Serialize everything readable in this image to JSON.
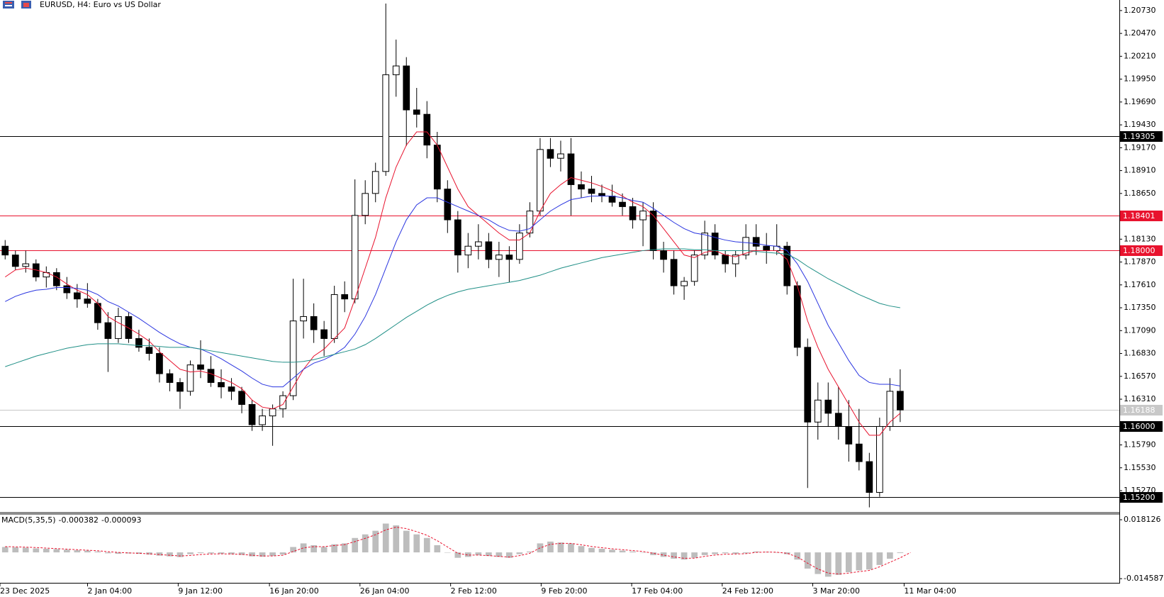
{
  "chart_data": [
    {
      "type": "candlestick",
      "title": "EURUSD, H4:  Euro vs US Dollar",
      "ylim": [
        1.1502,
        1.2085
      ],
      "xlim": [
        0,
        108.8
      ],
      "yticks": [
        {
          "value": 1.2073,
          "label": "1.20730"
        },
        {
          "value": 1.2047,
          "label": "1.20470"
        },
        {
          "value": 1.2021,
          "label": "1.20210"
        },
        {
          "value": 1.1995,
          "label": "1.19950"
        },
        {
          "value": 1.1969,
          "label": "1.19690"
        },
        {
          "value": 1.1943,
          "label": "1.19430"
        },
        {
          "value": 1.1917,
          "label": "1.19170"
        },
        {
          "value": 1.1891,
          "label": "1.18910"
        },
        {
          "value": 1.1865,
          "label": "1.18650"
        },
        {
          "value": 1.1813,
          "label": "1.18130"
        },
        {
          "value": 1.1787,
          "label": "1.17870"
        },
        {
          "value": 1.1761,
          "label": "1.17610"
        },
        {
          "value": 1.1735,
          "label": "1.17350"
        },
        {
          "value": 1.1709,
          "label": "1.17090"
        },
        {
          "value": 1.1683,
          "label": "1.16830"
        },
        {
          "value": 1.1657,
          "label": "1.16570"
        },
        {
          "value": 1.1631,
          "label": "1.16310"
        },
        {
          "value": 1.1579,
          "label": "1.15790"
        },
        {
          "value": 1.1553,
          "label": "1.15530"
        },
        {
          "value": 1.1527,
          "label": "1.15270"
        }
      ],
      "xticks": [
        {
          "value": 0,
          "label": "23 Dec 2025"
        },
        {
          "value": 8.51,
          "label": "2 Jan 04:00"
        },
        {
          "value": 17.32,
          "label": "9 Jan 12:00"
        },
        {
          "value": 26.19,
          "label": "16 Jan 20:00"
        },
        {
          "value": 34.99,
          "label": "26 Jan 04:00"
        },
        {
          "value": 43.8,
          "label": "2 Feb 12:00"
        },
        {
          "value": 52.6,
          "label": "9 Feb 20:00"
        },
        {
          "value": 61.4,
          "label": "17 Feb 04:00"
        },
        {
          "value": 70.2,
          "label": "24 Feb 12:00"
        },
        {
          "value": 79.0,
          "label": "3 Mar 20:00"
        },
        {
          "value": 87.88,
          "label": "11 Mar 04:00"
        }
      ],
      "up_color": "#ffffff",
      "down_color": "#000000",
      "wick_color": "#000000",
      "open": [
        1.1805,
        1.1795,
        1.1782,
        1.1785,
        1.177,
        1.1775,
        1.176,
        1.1752,
        1.1745,
        1.174,
        1.1718,
        1.17,
        1.1725,
        1.17,
        1.169,
        1.1683,
        1.166,
        1.165,
        1.164,
        1.167,
        1.1665,
        1.165,
        1.1645,
        1.164,
        1.1625,
        1.1602,
        1.1612,
        1.162,
        1.1635,
        1.172,
        1.1725,
        1.171,
        1.17,
        1.175,
        1.1745,
        1.184,
        1.1865,
        1.189,
        1.2,
        1.201,
        1.196,
        1.1955,
        1.192,
        1.187,
        1.1835,
        1.1795,
        1.1805,
        1.181,
        1.179,
        1.1795,
        1.179,
        1.182,
        1.1845,
        1.1915,
        1.1905,
        1.191,
        1.1875,
        1.187,
        1.1865,
        1.1862,
        1.1855,
        1.185,
        1.1835,
        1.1845,
        1.18,
        1.179,
        1.176,
        1.1765,
        1.1795,
        1.182,
        1.1795,
        1.1785,
        1.1795,
        1.1815,
        1.1805,
        1.18,
        1.1805,
        1.176,
        1.169,
        1.1605,
        1.163,
        1.1615,
        1.16,
        1.158,
        1.156,
        1.1525,
        1.16,
        1.164
      ],
      "high": [
        1.1812,
        1.18,
        1.18,
        1.179,
        1.1782,
        1.178,
        1.177,
        1.1762,
        1.1763,
        1.1745,
        1.173,
        1.1735,
        1.173,
        1.171,
        1.17,
        1.169,
        1.1665,
        1.1655,
        1.1675,
        1.1698,
        1.168,
        1.1665,
        1.1655,
        1.1645,
        1.163,
        1.162,
        1.1625,
        1.164,
        1.1768,
        1.1768,
        1.174,
        1.172,
        1.176,
        1.1765,
        1.1881,
        1.188,
        1.19,
        1.2081,
        1.204,
        1.202,
        1.1985,
        1.197,
        1.1935,
        1.188,
        1.1845,
        1.182,
        1.183,
        1.182,
        1.181,
        1.1805,
        1.183,
        1.1855,
        1.1928,
        1.1928,
        1.1925,
        1.1928,
        1.189,
        1.1885,
        1.1875,
        1.1875,
        1.1865,
        1.186,
        1.1855,
        1.1855,
        1.181,
        1.18,
        1.177,
        1.18,
        1.1834,
        1.183,
        1.18,
        1.18,
        1.183,
        1.183,
        1.182,
        1.183,
        1.181,
        1.1765,
        1.17,
        1.165,
        1.165,
        1.1645,
        1.163,
        1.162,
        1.157,
        1.161,
        1.1655,
        1.1665
      ],
      "low": [
        1.179,
        1.1778,
        1.1775,
        1.1765,
        1.1758,
        1.1755,
        1.1745,
        1.1735,
        1.1735,
        1.171,
        1.1662,
        1.1695,
        1.1695,
        1.1685,
        1.1675,
        1.165,
        1.164,
        1.162,
        1.1635,
        1.1655,
        1.1645,
        1.1632,
        1.163,
        1.1615,
        1.1595,
        1.1595,
        1.1578,
        1.161,
        1.163,
        1.17,
        1.1695,
        1.168,
        1.1695,
        1.173,
        1.174,
        1.183,
        1.1855,
        1.1885,
        1.1975,
        1.1919,
        1.194,
        1.1905,
        1.1855,
        1.182,
        1.1775,
        1.178,
        1.179,
        1.178,
        1.177,
        1.1764,
        1.1785,
        1.1815,
        1.184,
        1.1895,
        1.189,
        1.184,
        1.186,
        1.1855,
        1.1855,
        1.185,
        1.184,
        1.1825,
        1.1805,
        1.179,
        1.1775,
        1.175,
        1.1744,
        1.176,
        1.179,
        1.179,
        1.1775,
        1.177,
        1.179,
        1.1795,
        1.1785,
        1.1795,
        1.175,
        1.168,
        1.153,
        1.1585,
        1.16,
        1.1585,
        1.156,
        1.155,
        1.1508,
        1.152,
        1.1595,
        1.1605
      ],
      "close": [
        1.1795,
        1.1782,
        1.1785,
        1.177,
        1.1775,
        1.176,
        1.1752,
        1.1745,
        1.174,
        1.1718,
        1.17,
        1.1725,
        1.17,
        1.169,
        1.1683,
        1.166,
        1.165,
        1.164,
        1.167,
        1.1665,
        1.165,
        1.1645,
        1.164,
        1.1625,
        1.1602,
        1.1612,
        1.162,
        1.1635,
        1.172,
        1.1725,
        1.171,
        1.17,
        1.175,
        1.1745,
        1.184,
        1.1865,
        1.189,
        1.2,
        1.201,
        1.196,
        1.1955,
        1.192,
        1.187,
        1.1835,
        1.1795,
        1.1805,
        1.181,
        1.179,
        1.1795,
        1.179,
        1.182,
        1.1845,
        1.1915,
        1.1905,
        1.191,
        1.1875,
        1.187,
        1.1865,
        1.1862,
        1.1855,
        1.185,
        1.1835,
        1.1845,
        1.18,
        1.179,
        1.176,
        1.1765,
        1.1795,
        1.182,
        1.1795,
        1.1785,
        1.1795,
        1.1815,
        1.1805,
        1.18,
        1.1805,
        1.176,
        1.169,
        1.1605,
        1.163,
        1.1615,
        1.16,
        1.158,
        1.156,
        1.1525,
        1.16,
        1.164,
        1.16188
      ],
      "series": [
        {
          "color": "#e8132e",
          "values": [
            1.177,
            1.1778,
            1.178,
            1.1778,
            1.1775,
            1.177,
            1.1762,
            1.1755,
            1.175,
            1.174,
            1.1725,
            1.1718,
            1.1712,
            1.1705,
            1.1697,
            1.1685,
            1.1675,
            1.1665,
            1.1662,
            1.1663,
            1.166,
            1.1655,
            1.165,
            1.1643,
            1.163,
            1.1622,
            1.162,
            1.1625,
            1.1645,
            1.1665,
            1.168,
            1.1688,
            1.17,
            1.1712,
            1.1745,
            1.178,
            1.1815,
            1.186,
            1.1895,
            1.192,
            1.1935,
            1.1935,
            1.192,
            1.1895,
            1.187,
            1.185,
            1.184,
            1.183,
            1.182,
            1.1812,
            1.1812,
            1.182,
            1.1845,
            1.1865,
            1.1875,
            1.1883,
            1.188,
            1.1877,
            1.1873,
            1.1868,
            1.1862,
            1.1855,
            1.185,
            1.184,
            1.1825,
            1.181,
            1.1795,
            1.1792,
            1.1798,
            1.18,
            1.1795,
            1.1793,
            1.1797,
            1.18,
            1.18,
            1.18,
            1.179,
            1.176,
            1.172,
            1.169,
            1.1665,
            1.1645,
            1.1625,
            1.1605,
            1.159,
            1.159,
            1.1605,
            1.1615
          ]
        },
        {
          "color": "#2a35e0",
          "values": [
            1.1742,
            1.1748,
            1.1752,
            1.1755,
            1.1756,
            1.1758,
            1.1758,
            1.1757,
            1.1755,
            1.175,
            1.1742,
            1.1737,
            1.173,
            1.1723,
            1.1715,
            1.1707,
            1.17,
            1.1694,
            1.169,
            1.1688,
            1.1683,
            1.1677,
            1.167,
            1.1663,
            1.1655,
            1.1648,
            1.1645,
            1.1645,
            1.1655,
            1.1665,
            1.1672,
            1.1676,
            1.1682,
            1.169,
            1.1705,
            1.1725,
            1.175,
            1.178,
            1.181,
            1.1835,
            1.1852,
            1.186,
            1.186,
            1.1855,
            1.185,
            1.1845,
            1.184,
            1.1835,
            1.1828,
            1.1823,
            1.1822,
            1.1825,
            1.1835,
            1.1845,
            1.1852,
            1.1858,
            1.186,
            1.1862,
            1.1862,
            1.1862,
            1.186,
            1.1857,
            1.1855,
            1.1848,
            1.184,
            1.1832,
            1.1825,
            1.182,
            1.1818,
            1.1815,
            1.1812,
            1.181,
            1.1809,
            1.1808,
            1.1806,
            1.1805,
            1.18,
            1.1785,
            1.1765,
            1.174,
            1.1715,
            1.1695,
            1.1675,
            1.1658,
            1.165,
            1.1648,
            1.1648,
            1.1646
          ]
        },
        {
          "color": "#1f8f86",
          "values": [
            1.1668,
            1.1672,
            1.1676,
            1.168,
            1.1683,
            1.1686,
            1.1689,
            1.1691,
            1.1693,
            1.1694,
            1.1694,
            1.1694,
            1.1693,
            1.1692,
            1.1692,
            1.1691,
            1.169,
            1.169,
            1.169,
            1.1688,
            1.1686,
            1.1684,
            1.1682,
            1.168,
            1.1678,
            1.1676,
            1.1674,
            1.1673,
            1.1673,
            1.1674,
            1.1676,
            1.1679,
            1.1682,
            1.1685,
            1.1688,
            1.1693,
            1.17,
            1.1708,
            1.1716,
            1.1724,
            1.1731,
            1.1738,
            1.1744,
            1.1749,
            1.1753,
            1.1756,
            1.1758,
            1.176,
            1.1762,
            1.1764,
            1.1766,
            1.1769,
            1.1772,
            1.1776,
            1.178,
            1.1783,
            1.1786,
            1.1789,
            1.1792,
            1.1794,
            1.1796,
            1.1798,
            1.18,
            1.1801,
            1.1802,
            1.1802,
            1.1802,
            1.1801,
            1.1801,
            1.18,
            1.18,
            1.18,
            1.18,
            1.1799,
            1.1798,
            1.1797,
            1.1796,
            1.179,
            1.1782,
            1.1775,
            1.1768,
            1.1762,
            1.1756,
            1.175,
            1.1745,
            1.174,
            1.1737,
            1.1735
          ]
        }
      ],
      "levels": [
        {
          "price": 1.19305,
          "color": "#000000"
        },
        {
          "price": 1.18401,
          "color": "#e8132e"
        },
        {
          "price": {
            "value": 1.18,
            "label": "1.18000"
          },
          "color": "#e8132e"
        },
        {
          "price": 1.16188,
          "color": "#c8c8c8"
        },
        {
          "price": {
            "value": 1.16,
            "label": "1.16000"
          },
          "color": "#000000"
        },
        {
          "price": {
            "value": 1.152,
            "label": "1.15200"
          },
          "color": "#000000"
        }
      ]
    },
    {
      "type": "bar",
      "title": "MACD(5,35,5)",
      "ylim": [
        -0.0165,
        0.0205
      ],
      "yticks": [
        0.018126,
        -0.014587
      ],
      "color": "#bdbdbd",
      "values": [
        0.003,
        0.0028,
        0.0026,
        0.0022,
        0.002,
        0.0018,
        0.0015,
        0.0012,
        0.001,
        0.0005,
        -0.0005,
        -0.0008,
        -0.0006,
        -0.0008,
        -0.0012,
        -0.0018,
        -0.0022,
        -0.0026,
        -0.001,
        -0.0004,
        -0.0006,
        -0.0008,
        -0.001,
        -0.0014,
        -0.0022,
        -0.0024,
        -0.002,
        -0.0012,
        0.003,
        0.005,
        0.004,
        0.003,
        0.0045,
        0.005,
        0.008,
        0.01,
        0.012,
        0.016,
        0.015,
        0.012,
        0.01,
        0.008,
        0.004,
        0.0,
        -0.003,
        -0.0025,
        -0.0015,
        -0.002,
        -0.0025,
        -0.003,
        -0.001,
        0.0005,
        0.005,
        0.006,
        0.0055,
        0.005,
        0.0035,
        0.0025,
        0.002,
        0.0015,
        0.001,
        0.0005,
        0.0,
        -0.0015,
        -0.0025,
        -0.0035,
        -0.004,
        -0.003,
        -0.0015,
        -0.001,
        -0.0005,
        -0.0008,
        -0.0005,
        0.0005,
        0.0003,
        0.0,
        -0.001,
        -0.004,
        -0.009,
        -0.012,
        -0.0135,
        -0.0125,
        -0.011,
        -0.01,
        -0.0095,
        -0.007,
        -0.0035,
        -0.000382
      ],
      "series": [
        {
          "color": "#e8132e",
          "dashed": true,
          "values": [
            0.0032,
            0.0031,
            0.0029,
            0.0027,
            0.0024,
            0.0021,
            0.0018,
            0.0015,
            0.0012,
            0.0009,
            0.0004,
            0.0,
            -0.0003,
            -0.0005,
            -0.0008,
            -0.0012,
            -0.0016,
            -0.002,
            -0.0017,
            -0.0012,
            -0.0009,
            -0.0008,
            -0.0009,
            -0.0011,
            -0.0016,
            -0.002,
            -0.002,
            -0.0016,
            0.0005,
            0.0025,
            0.0032,
            0.0032,
            0.0038,
            0.0043,
            0.006,
            0.0078,
            0.0098,
            0.0125,
            0.014,
            0.0132,
            0.0115,
            0.0095,
            0.0065,
            0.003,
            -0.0005,
            -0.0015,
            -0.0015,
            -0.0018,
            -0.0022,
            -0.0026,
            -0.0018,
            -0.0005,
            0.0025,
            0.0045,
            0.005,
            0.005,
            0.0042,
            0.0033,
            0.0026,
            0.002,
            0.0015,
            0.001,
            0.0005,
            -0.0005,
            -0.0015,
            -0.0025,
            -0.0033,
            -0.0032,
            -0.0022,
            -0.0015,
            -0.001,
            -0.0009,
            -0.0007,
            0.0,
            0.0002,
            0.0001,
            -0.0005,
            -0.0025,
            -0.006,
            -0.0092,
            -0.0115,
            -0.012,
            -0.0115,
            -0.0107,
            -0.01,
            -0.008,
            -0.0055,
            -0.003,
            -9.3e-05
          ]
        }
      ]
    }
  ]
}
